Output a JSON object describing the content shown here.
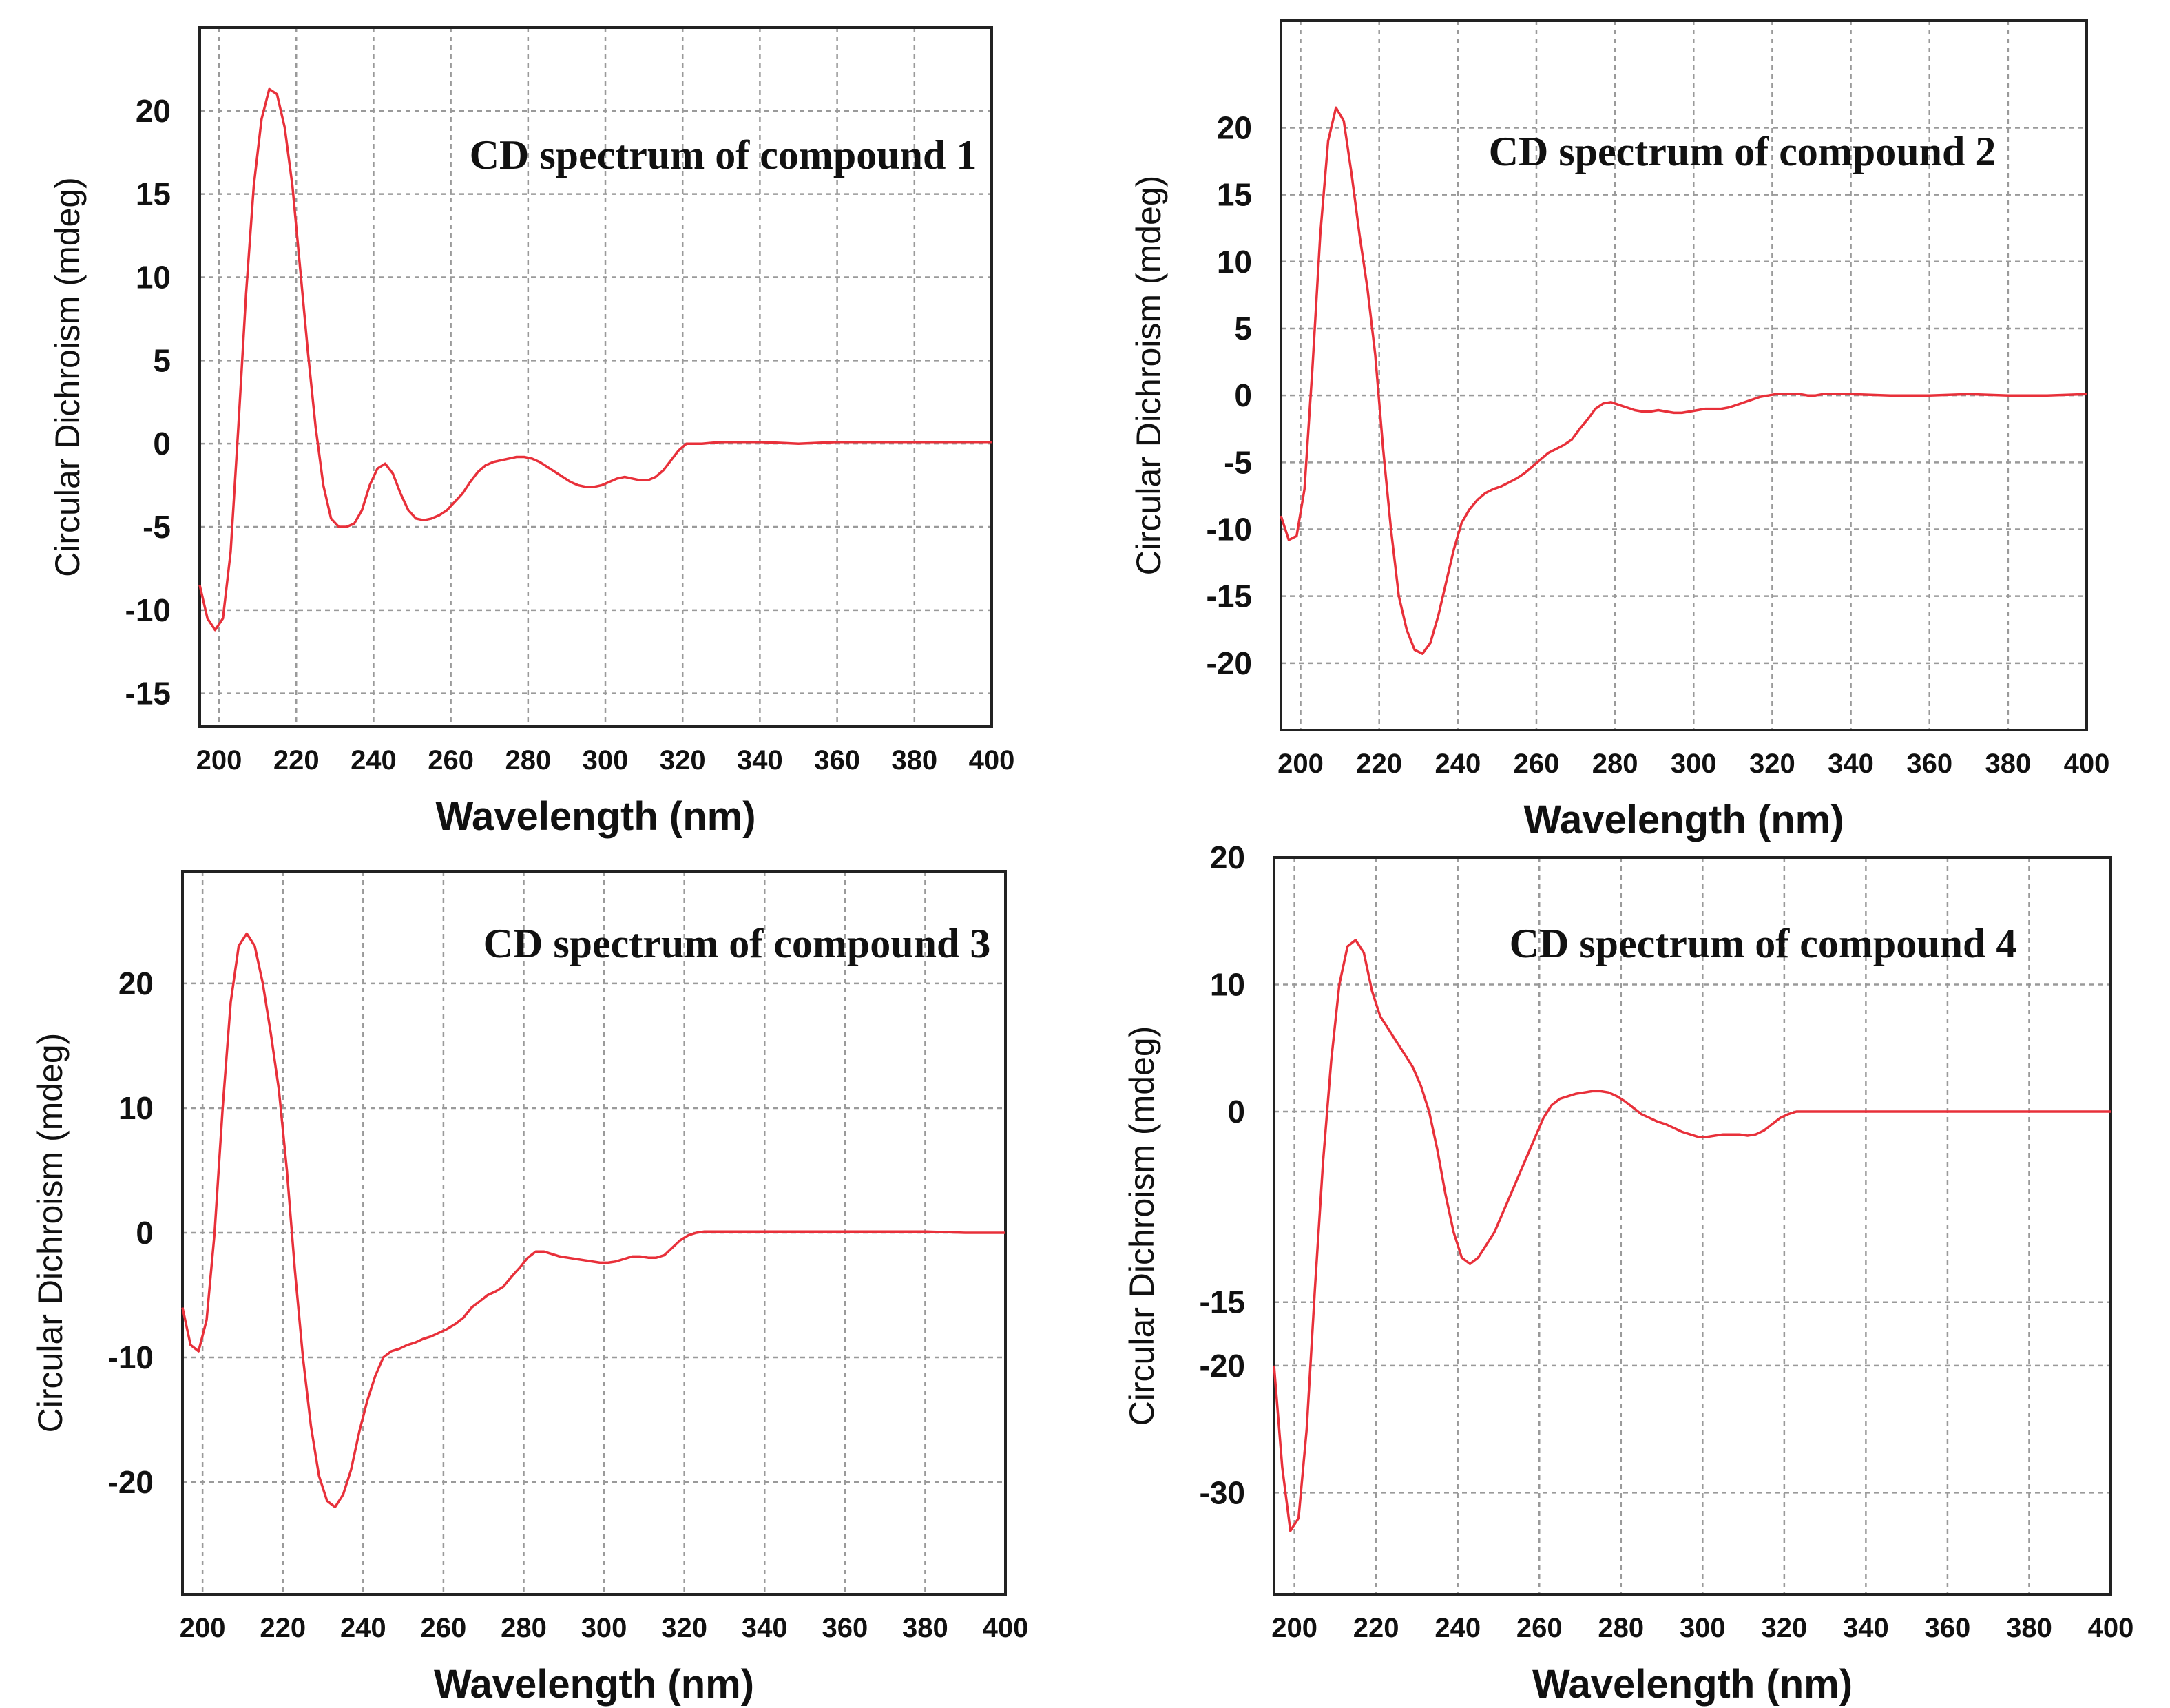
{
  "chart_data": [
    {
      "type": "line",
      "title": "CD spectrum of compound 1",
      "xlabel": "Wavelength (nm)",
      "ylabel": "Circular Dichroism (mdeg)",
      "xlim": [
        195,
        400
      ],
      "ylim": [
        -17,
        25
      ],
      "xticks": [
        200,
        220,
        240,
        260,
        280,
        300,
        320,
        340,
        360,
        380,
        400
      ],
      "yticks": [
        -15,
        -10,
        -5,
        0,
        5,
        10,
        15,
        20
      ],
      "grid": true,
      "series": [
        {
          "name": "compound 1",
          "color": "#e8303a",
          "x": [
            195,
            197,
            199,
            201,
            203,
            205,
            207,
            209,
            211,
            213,
            215,
            217,
            219,
            221,
            223,
            225,
            227,
            229,
            231,
            233,
            235,
            237,
            239,
            241,
            243,
            245,
            247,
            249,
            251,
            253,
            255,
            257,
            259,
            261,
            263,
            265,
            267,
            269,
            271,
            273,
            275,
            277,
            279,
            281,
            283,
            285,
            287,
            289,
            291,
            293,
            295,
            297,
            299,
            301,
            303,
            305,
            307,
            309,
            311,
            313,
            315,
            317,
            319,
            321,
            323,
            325,
            330,
            340,
            350,
            360,
            370,
            380,
            390,
            400
          ],
          "y": [
            -8.5,
            -10.5,
            -11.2,
            -10.5,
            -6.5,
            1.0,
            9.0,
            15.5,
            19.5,
            21.3,
            21.0,
            19.0,
            15.5,
            10.5,
            5.5,
            1.0,
            -2.5,
            -4.5,
            -5.0,
            -5.0,
            -4.8,
            -4.0,
            -2.5,
            -1.5,
            -1.2,
            -1.8,
            -3.0,
            -4.0,
            -4.5,
            -4.6,
            -4.5,
            -4.3,
            -4.0,
            -3.5,
            -3.0,
            -2.3,
            -1.7,
            -1.3,
            -1.1,
            -1.0,
            -0.9,
            -0.8,
            -0.8,
            -0.9,
            -1.1,
            -1.4,
            -1.7,
            -2.0,
            -2.3,
            -2.5,
            -2.6,
            -2.6,
            -2.5,
            -2.3,
            -2.1,
            -2.0,
            -2.1,
            -2.2,
            -2.2,
            -2.0,
            -1.6,
            -1.0,
            -0.4,
            0.0,
            0.0,
            0.0,
            0.1,
            0.1,
            0.0,
            0.1,
            0.1,
            0.1,
            0.1,
            0.1
          ]
        }
      ]
    },
    {
      "type": "line",
      "title": "CD spectrum of compound 2",
      "xlabel": "Wavelength (nm)",
      "ylabel": "Circular Dichroism (mdeg)",
      "xlim": [
        195,
        400
      ],
      "ylim": [
        -25,
        28
      ],
      "xticks": [
        200,
        220,
        240,
        260,
        280,
        300,
        320,
        340,
        360,
        380,
        400
      ],
      "yticks": [
        -20,
        -15,
        -10,
        -5,
        0,
        5,
        10,
        15,
        20
      ],
      "grid": true,
      "series": [
        {
          "name": "compound 2",
          "color": "#e8303a",
          "x": [
            195,
            197,
            199,
            201,
            203,
            205,
            207,
            209,
            211,
            213,
            215,
            217,
            219,
            221,
            223,
            225,
            227,
            229,
            231,
            233,
            235,
            237,
            239,
            241,
            243,
            245,
            247,
            249,
            251,
            253,
            255,
            257,
            259,
            261,
            263,
            265,
            267,
            269,
            271,
            273,
            275,
            277,
            279,
            281,
            283,
            285,
            287,
            289,
            291,
            293,
            295,
            297,
            299,
            301,
            303,
            305,
            307,
            309,
            311,
            313,
            315,
            317,
            319,
            321,
            323,
            325,
            327,
            329,
            331,
            333,
            335,
            340,
            350,
            360,
            370,
            380,
            390,
            400
          ],
          "y": [
            -9.0,
            -10.8,
            -10.5,
            -7.0,
            2.0,
            12.0,
            19.0,
            21.5,
            20.5,
            16.5,
            12.0,
            8.0,
            3.0,
            -4.0,
            -10.0,
            -15.0,
            -17.5,
            -19.0,
            -19.3,
            -18.5,
            -16.5,
            -14.0,
            -11.5,
            -9.5,
            -8.5,
            -7.8,
            -7.3,
            -7.0,
            -6.8,
            -6.5,
            -6.2,
            -5.8,
            -5.3,
            -4.8,
            -4.3,
            -4.0,
            -3.7,
            -3.3,
            -2.5,
            -1.8,
            -1.0,
            -0.6,
            -0.5,
            -0.7,
            -0.9,
            -1.1,
            -1.2,
            -1.2,
            -1.1,
            -1.2,
            -1.3,
            -1.3,
            -1.2,
            -1.1,
            -1.0,
            -1.0,
            -1.0,
            -0.9,
            -0.7,
            -0.5,
            -0.3,
            -0.1,
            0.0,
            0.1,
            0.1,
            0.1,
            0.1,
            0.0,
            0.0,
            0.1,
            0.1,
            0.1,
            0.0,
            0.0,
            0.1,
            0.0,
            0.0,
            0.1
          ]
        }
      ]
    },
    {
      "type": "line",
      "title": "CD spectrum of compound 3",
      "xlabel": "Wavelength (nm)",
      "ylabel": "Circular Dichroism (mdeg)",
      "xlim": [
        195,
        400
      ],
      "ylim": [
        -29,
        29
      ],
      "xticks": [
        200,
        220,
        240,
        260,
        280,
        300,
        320,
        340,
        360,
        380,
        400
      ],
      "yticks": [
        -20,
        -10,
        0,
        10,
        20
      ],
      "grid": true,
      "series": [
        {
          "name": "compound 3",
          "color": "#e8303a",
          "x": [
            195,
            197,
            199,
            201,
            203,
            205,
            207,
            209,
            211,
            213,
            215,
            217,
            219,
            221,
            223,
            225,
            227,
            229,
            231,
            233,
            235,
            237,
            239,
            241,
            243,
            245,
            247,
            249,
            251,
            253,
            255,
            257,
            259,
            261,
            263,
            265,
            267,
            269,
            271,
            273,
            275,
            277,
            279,
            281,
            283,
            285,
            287,
            289,
            291,
            293,
            295,
            297,
            299,
            301,
            303,
            305,
            307,
            309,
            311,
            313,
            315,
            317,
            319,
            321,
            323,
            325,
            330,
            340,
            350,
            360,
            370,
            380,
            390,
            400
          ],
          "y": [
            -6.0,
            -9.0,
            -9.5,
            -7.0,
            0.0,
            10.0,
            18.5,
            23.0,
            24.0,
            23.0,
            20.0,
            16.0,
            11.5,
            5.0,
            -3.0,
            -10.0,
            -15.5,
            -19.5,
            -21.5,
            -22.0,
            -21.0,
            -19.0,
            -16.0,
            -13.5,
            -11.5,
            -10.0,
            -9.5,
            -9.3,
            -9.0,
            -8.8,
            -8.5,
            -8.3,
            -8.0,
            -7.7,
            -7.3,
            -6.8,
            -6.0,
            -5.5,
            -5.0,
            -4.7,
            -4.3,
            -3.5,
            -2.8,
            -2.0,
            -1.5,
            -1.5,
            -1.7,
            -1.9,
            -2.0,
            -2.1,
            -2.2,
            -2.3,
            -2.4,
            -2.4,
            -2.3,
            -2.1,
            -1.9,
            -1.9,
            -2.0,
            -2.0,
            -1.8,
            -1.2,
            -0.6,
            -0.2,
            0.0,
            0.1,
            0.1,
            0.1,
            0.1,
            0.1,
            0.1,
            0.1,
            0.0,
            0.0
          ]
        }
      ]
    },
    {
      "type": "line",
      "title": "CD spectrum of compound 4",
      "xlabel": "Wavelength (nm)",
      "ylabel": "Circular Dichroism (mdeg)",
      "xlim": [
        195,
        400
      ],
      "ylim": [
        -38,
        20
      ],
      "xticks": [
        200,
        220,
        240,
        260,
        280,
        300,
        320,
        340,
        360,
        380,
        400
      ],
      "yticks": [
        -30,
        -20,
        -15,
        0,
        10,
        20
      ],
      "grid": true,
      "series": [
        {
          "name": "compound 4",
          "color": "#e8303a",
          "x": [
            195,
            197,
            199,
            201,
            203,
            205,
            207,
            209,
            211,
            213,
            215,
            217,
            219,
            221,
            223,
            225,
            227,
            229,
            231,
            233,
            235,
            237,
            239,
            241,
            243,
            245,
            247,
            249,
            251,
            253,
            255,
            257,
            259,
            261,
            263,
            265,
            267,
            269,
            271,
            273,
            275,
            277,
            279,
            281,
            283,
            285,
            287,
            289,
            291,
            293,
            295,
            297,
            299,
            301,
            303,
            305,
            307,
            309,
            311,
            313,
            315,
            317,
            319,
            321,
            323,
            325,
            330,
            340,
            350,
            360,
            370,
            380,
            390,
            400
          ],
          "y": [
            -20.0,
            -28.0,
            -33.0,
            -32.0,
            -25.0,
            -14.0,
            -4.0,
            4.0,
            10.0,
            13.0,
            13.5,
            12.5,
            9.5,
            7.5,
            6.5,
            5.5,
            4.5,
            3.5,
            2.0,
            0.0,
            -3.0,
            -6.5,
            -9.5,
            -11.5,
            -12.0,
            -11.5,
            -10.5,
            -9.5,
            -8.0,
            -6.5,
            -5.0,
            -3.5,
            -2.0,
            -0.5,
            0.5,
            1.0,
            1.2,
            1.4,
            1.5,
            1.6,
            1.6,
            1.5,
            1.2,
            0.8,
            0.3,
            -0.2,
            -0.5,
            -0.8,
            -1.0,
            -1.3,
            -1.6,
            -1.8,
            -2.0,
            -2.0,
            -1.9,
            -1.8,
            -1.8,
            -1.8,
            -1.9,
            -1.8,
            -1.5,
            -1.0,
            -0.5,
            -0.2,
            0.0,
            0.0,
            0.0,
            0.0,
            0.0,
            0.0,
            0.0,
            0.0,
            0.0,
            0.0
          ]
        }
      ]
    }
  ]
}
